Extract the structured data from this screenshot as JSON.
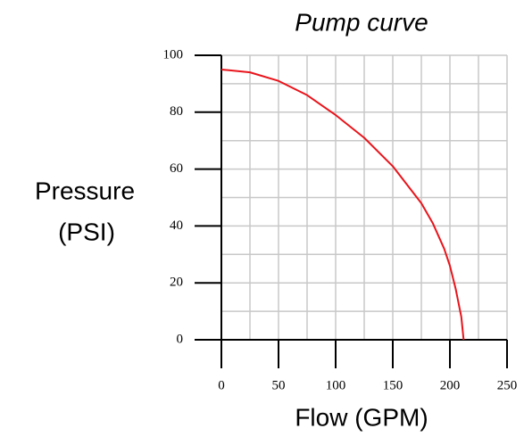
{
  "chart_data": {
    "type": "line",
    "title": "Pump curve",
    "xlabel": "Flow   (GPM)",
    "ylabel": [
      "Pressure",
      "(PSI)"
    ],
    "series": [
      {
        "color": "#e8141b",
        "x": [
          0,
          25,
          50,
          75,
          100,
          125,
          150,
          175,
          185,
          195,
          200,
          205,
          210,
          212
        ],
        "values": [
          95,
          94,
          91,
          86,
          79,
          71,
          61,
          48,
          41,
          32,
          26,
          18,
          8,
          0
        ]
      }
    ],
    "xlim": [
      0,
      250
    ],
    "ylim": [
      0,
      100
    ],
    "xticks": [
      0,
      50,
      100,
      150,
      200,
      250
    ],
    "yticks": [
      0,
      20,
      40,
      60,
      80,
      100
    ],
    "grid": true,
    "xgrid": [
      25,
      50,
      75,
      100,
      125,
      150,
      175,
      200,
      225,
      250
    ],
    "ygrid": [
      10,
      20,
      30,
      40,
      50,
      60,
      70,
      80,
      90,
      100
    ]
  }
}
